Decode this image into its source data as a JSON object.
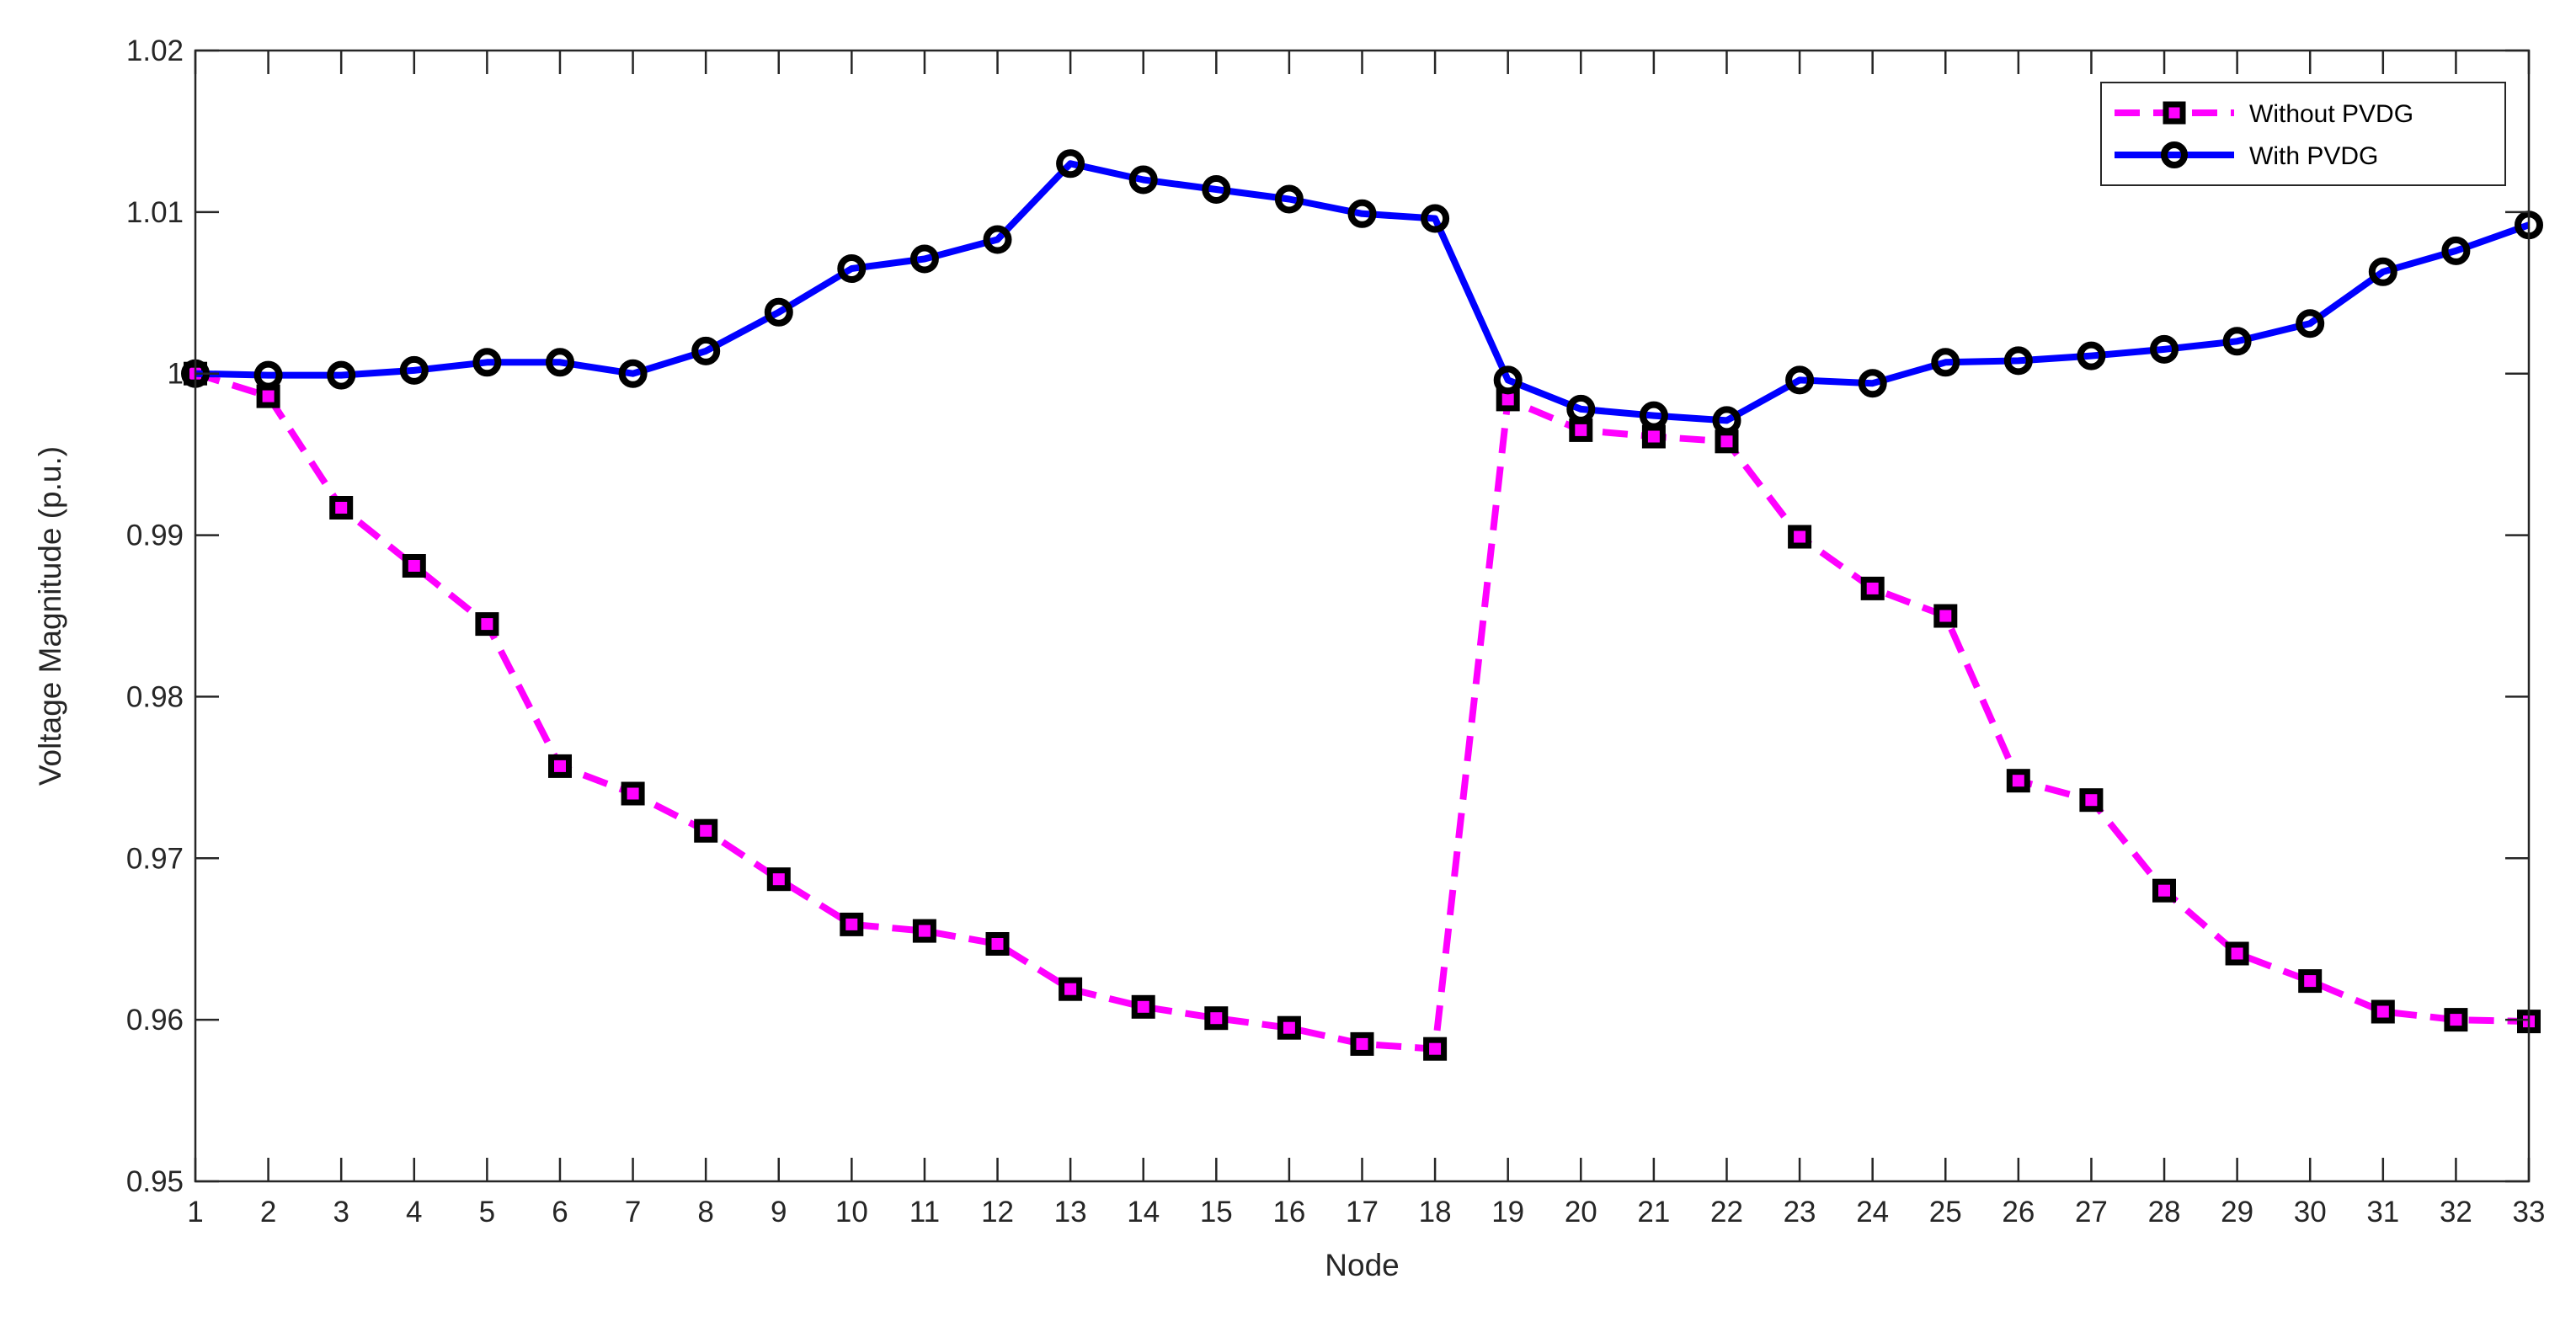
{
  "chart_data": {
    "type": "line",
    "xlabel": "Node",
    "ylabel": "Voltage Magnitude (p.u.)",
    "xlim": [
      1,
      33
    ],
    "ylim": [
      0.95,
      1.02
    ],
    "x_ticks": [
      1,
      2,
      3,
      4,
      5,
      6,
      7,
      8,
      9,
      10,
      11,
      12,
      13,
      14,
      15,
      16,
      17,
      18,
      19,
      20,
      21,
      22,
      23,
      24,
      25,
      26,
      27,
      28,
      29,
      30,
      31,
      32,
      33
    ],
    "y_ticks": [
      0.95,
      0.96,
      0.97,
      0.98,
      0.99,
      1,
      1.01,
      1.02
    ],
    "y_tick_labels": [
      "0.95",
      "0.96",
      "0.97",
      "0.98",
      "0.99",
      "1",
      "1.01",
      "1.02"
    ],
    "grid": false,
    "legend_position": "top-right",
    "x": [
      1,
      2,
      3,
      4,
      5,
      6,
      7,
      8,
      9,
      10,
      11,
      12,
      13,
      14,
      15,
      16,
      17,
      18,
      19,
      20,
      21,
      22,
      23,
      24,
      25,
      26,
      27,
      28,
      29,
      30,
      31,
      32,
      33
    ],
    "series": [
      {
        "name": "Without PVDG",
        "color": "#ff00ff",
        "line_style": "dashed",
        "marker": "square",
        "values": [
          1.0,
          0.9986,
          0.9917,
          0.9881,
          0.9845,
          0.9757,
          0.974,
          0.9717,
          0.9687,
          0.9659,
          0.9655,
          0.9647,
          0.9619,
          0.9608,
          0.9601,
          0.9595,
          0.9585,
          0.9582,
          0.9984,
          0.9965,
          0.9961,
          0.9958,
          0.9899,
          0.9867,
          0.985,
          0.9748,
          0.9736,
          0.968,
          0.9641,
          0.9624,
          0.9605,
          0.96,
          0.9599
        ]
      },
      {
        "name": "With PVDG",
        "color": "#0000ff",
        "line_style": "solid",
        "marker": "circle",
        "values": [
          1.0,
          0.9999,
          0.9999,
          1.0002,
          1.0007,
          1.0007,
          1.0,
          1.0014,
          1.0038,
          1.0065,
          1.0071,
          1.0083,
          1.013,
          1.012,
          1.0114,
          1.0108,
          1.0099,
          1.0096,
          0.9996,
          0.9978,
          0.9974,
          0.9971,
          0.9996,
          0.9994,
          1.0007,
          1.0008,
          1.0011,
          1.0015,
          1.002,
          1.0031,
          1.0063,
          1.0076,
          1.0092
        ]
      }
    ]
  }
}
